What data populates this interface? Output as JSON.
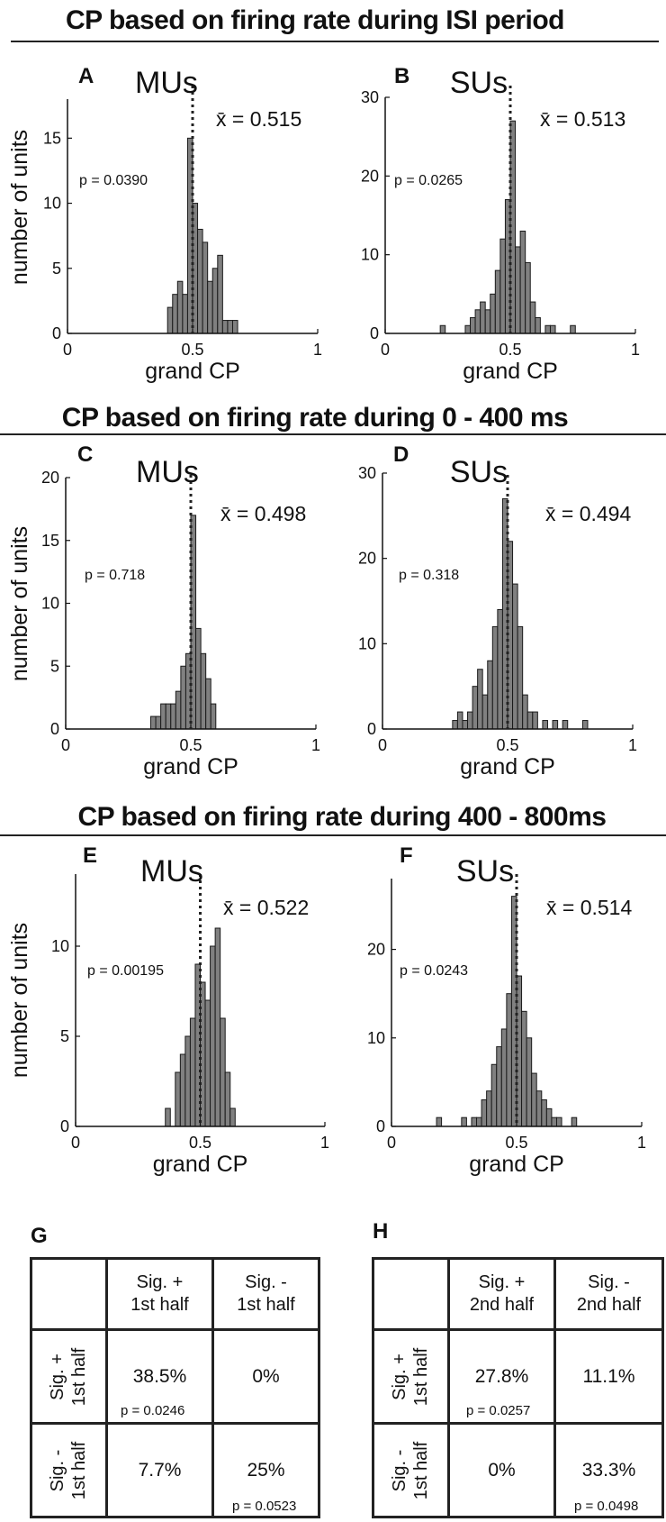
{
  "sections": [
    {
      "title": "CP based on firing rate during ISI period"
    },
    {
      "title": "CP based on firing rate during 0 - 400 ms"
    },
    {
      "title": "CP based on firing rate during 400 - 800ms"
    }
  ],
  "chart_data": [
    {
      "type": "bar",
      "panel": "A",
      "title": "MUs",
      "xlabel": "grand CP",
      "ylabel": "number of units",
      "mean_label": "x̄ = 0.515",
      "p_label": "p = 0.0390",
      "mean": 0.5,
      "xlim": [
        0,
        1
      ],
      "ylim": [
        0,
        18
      ],
      "xticks": [
        0,
        0.5,
        1
      ],
      "xtick_labels": [
        "0",
        "0.5",
        "1"
      ],
      "yticks": [
        0,
        5,
        10,
        15
      ],
      "bin_width": 0.02,
      "bins": [
        {
          "x": 0.4,
          "count": 2
        },
        {
          "x": 0.42,
          "count": 3
        },
        {
          "x": 0.44,
          "count": 4
        },
        {
          "x": 0.46,
          "count": 3
        },
        {
          "x": 0.48,
          "count": 15
        },
        {
          "x": 0.5,
          "count": 10
        },
        {
          "x": 0.52,
          "count": 8
        },
        {
          "x": 0.54,
          "count": 7
        },
        {
          "x": 0.56,
          "count": 4
        },
        {
          "x": 0.58,
          "count": 5
        },
        {
          "x": 0.6,
          "count": 6
        },
        {
          "x": 0.62,
          "count": 1
        },
        {
          "x": 0.64,
          "count": 1
        },
        {
          "x": 0.66,
          "count": 1
        }
      ]
    },
    {
      "type": "bar",
      "panel": "B",
      "title": "SUs",
      "xlabel": "grand CP",
      "ylabel": "",
      "mean_label": "x̄ = 0.513",
      "p_label": "p = 0.0265",
      "mean": 0.5,
      "xlim": [
        0,
        1
      ],
      "ylim": [
        0,
        30
      ],
      "xticks": [
        0,
        0.5,
        1
      ],
      "xtick_labels": [
        "0",
        "0.5",
        "1"
      ],
      "yticks": [
        0,
        10,
        20,
        30
      ],
      "bin_width": 0.02,
      "bins": [
        {
          "x": 0.22,
          "count": 1
        },
        {
          "x": 0.32,
          "count": 1
        },
        {
          "x": 0.34,
          "count": 2
        },
        {
          "x": 0.36,
          "count": 3
        },
        {
          "x": 0.38,
          "count": 4
        },
        {
          "x": 0.4,
          "count": 3
        },
        {
          "x": 0.42,
          "count": 5
        },
        {
          "x": 0.44,
          "count": 8
        },
        {
          "x": 0.46,
          "count": 12
        },
        {
          "x": 0.48,
          "count": 17
        },
        {
          "x": 0.5,
          "count": 27
        },
        {
          "x": 0.52,
          "count": 11
        },
        {
          "x": 0.54,
          "count": 13
        },
        {
          "x": 0.56,
          "count": 9
        },
        {
          "x": 0.58,
          "count": 4
        },
        {
          "x": 0.6,
          "count": 2
        },
        {
          "x": 0.64,
          "count": 1
        },
        {
          "x": 0.66,
          "count": 1
        },
        {
          "x": 0.74,
          "count": 1
        }
      ]
    },
    {
      "type": "bar",
      "panel": "C",
      "title": "MUs",
      "xlabel": "grand CP",
      "ylabel": "number of units",
      "mean_label": "x̄ = 0.498",
      "p_label": "p = 0.718",
      "mean": 0.5,
      "xlim": [
        0,
        1
      ],
      "ylim": [
        0,
        20
      ],
      "xticks": [
        0,
        0.5,
        1
      ],
      "xtick_labels": [
        "0",
        "0.5",
        "1"
      ],
      "yticks": [
        0,
        5,
        10,
        15,
        20
      ],
      "bin_width": 0.02,
      "bins": [
        {
          "x": 0.34,
          "count": 1
        },
        {
          "x": 0.36,
          "count": 1
        },
        {
          "x": 0.38,
          "count": 2
        },
        {
          "x": 0.4,
          "count": 2
        },
        {
          "x": 0.42,
          "count": 2
        },
        {
          "x": 0.44,
          "count": 3
        },
        {
          "x": 0.46,
          "count": 5
        },
        {
          "x": 0.48,
          "count": 6
        },
        {
          "x": 0.5,
          "count": 17
        },
        {
          "x": 0.52,
          "count": 8
        },
        {
          "x": 0.54,
          "count": 6
        },
        {
          "x": 0.56,
          "count": 4
        },
        {
          "x": 0.58,
          "count": 2
        }
      ]
    },
    {
      "type": "bar",
      "panel": "D",
      "title": "SUs",
      "xlabel": "grand CP",
      "ylabel": "",
      "mean_label": "x̄ = 0.494",
      "p_label": "p = 0.318",
      "mean": 0.5,
      "xlim": [
        0,
        1
      ],
      "ylim": [
        0,
        30
      ],
      "xticks": [
        0,
        0.5,
        1
      ],
      "xtick_labels": [
        "0",
        "0.5",
        "1"
      ],
      "yticks": [
        0,
        10,
        20,
        30
      ],
      "bin_width": 0.02,
      "bins": [
        {
          "x": 0.28,
          "count": 1
        },
        {
          "x": 0.3,
          "count": 2
        },
        {
          "x": 0.32,
          "count": 1
        },
        {
          "x": 0.34,
          "count": 2
        },
        {
          "x": 0.36,
          "count": 5
        },
        {
          "x": 0.38,
          "count": 7
        },
        {
          "x": 0.4,
          "count": 4
        },
        {
          "x": 0.42,
          "count": 8
        },
        {
          "x": 0.44,
          "count": 12
        },
        {
          "x": 0.46,
          "count": 14
        },
        {
          "x": 0.48,
          "count": 27
        },
        {
          "x": 0.5,
          "count": 22
        },
        {
          "x": 0.52,
          "count": 17
        },
        {
          "x": 0.54,
          "count": 12
        },
        {
          "x": 0.56,
          "count": 4
        },
        {
          "x": 0.58,
          "count": 2
        },
        {
          "x": 0.6,
          "count": 2
        },
        {
          "x": 0.64,
          "count": 1
        },
        {
          "x": 0.68,
          "count": 1
        },
        {
          "x": 0.72,
          "count": 1
        },
        {
          "x": 0.8,
          "count": 1
        }
      ]
    },
    {
      "type": "bar",
      "panel": "E",
      "title": "MUs",
      "xlabel": "grand CP",
      "ylabel": "number of units",
      "mean_label": "x̄ = 0.522",
      "p_label": "p = 0.00195",
      "mean": 0.5,
      "xlim": [
        0,
        1
      ],
      "ylim": [
        0,
        14
      ],
      "xticks": [
        0,
        0.5,
        1
      ],
      "xtick_labels": [
        "0",
        "0.5",
        "1"
      ],
      "yticks": [
        0,
        5,
        10
      ],
      "bin_width": 0.02,
      "bins": [
        {
          "x": 0.36,
          "count": 1
        },
        {
          "x": 0.4,
          "count": 3
        },
        {
          "x": 0.42,
          "count": 4
        },
        {
          "x": 0.44,
          "count": 5
        },
        {
          "x": 0.46,
          "count": 6
        },
        {
          "x": 0.48,
          "count": 9
        },
        {
          "x": 0.5,
          "count": 8
        },
        {
          "x": 0.52,
          "count": 7
        },
        {
          "x": 0.54,
          "count": 10
        },
        {
          "x": 0.56,
          "count": 11
        },
        {
          "x": 0.58,
          "count": 6
        },
        {
          "x": 0.6,
          "count": 3
        },
        {
          "x": 0.62,
          "count": 1
        }
      ]
    },
    {
      "type": "bar",
      "panel": "F",
      "title": "SUs",
      "xlabel": "grand CP",
      "ylabel": "",
      "mean_label": "x̄ = 0.514",
      "p_label": "p = 0.0243",
      "mean": 0.5,
      "xlim": [
        0,
        1
      ],
      "ylim": [
        0,
        28
      ],
      "xticks": [
        0,
        0.5,
        1
      ],
      "xtick_labels": [
        "0",
        "0.5",
        "1"
      ],
      "yticks": [
        0,
        10,
        20
      ],
      "bin_width": 0.02,
      "bins": [
        {
          "x": 0.18,
          "count": 1
        },
        {
          "x": 0.28,
          "count": 1
        },
        {
          "x": 0.32,
          "count": 1
        },
        {
          "x": 0.34,
          "count": 1
        },
        {
          "x": 0.36,
          "count": 3
        },
        {
          "x": 0.38,
          "count": 4
        },
        {
          "x": 0.4,
          "count": 7
        },
        {
          "x": 0.42,
          "count": 9
        },
        {
          "x": 0.44,
          "count": 11
        },
        {
          "x": 0.46,
          "count": 15
        },
        {
          "x": 0.48,
          "count": 26
        },
        {
          "x": 0.5,
          "count": 17
        },
        {
          "x": 0.52,
          "count": 13
        },
        {
          "x": 0.54,
          "count": 10
        },
        {
          "x": 0.56,
          "count": 6
        },
        {
          "x": 0.58,
          "count": 4
        },
        {
          "x": 0.6,
          "count": 3
        },
        {
          "x": 0.62,
          "count": 2
        },
        {
          "x": 0.64,
          "count": 1
        },
        {
          "x": 0.66,
          "count": 1
        },
        {
          "x": 0.72,
          "count": 1
        }
      ]
    }
  ],
  "tables": [
    {
      "panel": "G",
      "col_headers": [
        "Sig. +\n1st half",
        "Sig. -\n1st half"
      ],
      "row_headers": [
        "Sig. +\n1st half",
        "Sig. -\n1st half"
      ],
      "cells": [
        [
          {
            "value": "38.5%",
            "p": "p = 0.0246"
          },
          {
            "value": "0%",
            "p": ""
          }
        ],
        [
          {
            "value": "7.7%",
            "p": ""
          },
          {
            "value": "25%",
            "p": "p = 0.0523"
          }
        ]
      ]
    },
    {
      "panel": "H",
      "col_headers": [
        "Sig. +\n2nd half",
        "Sig. -\n2nd half"
      ],
      "row_headers": [
        "Sig. +\n1st half",
        "Sig. -\n1st half"
      ],
      "cells": [
        [
          {
            "value": "27.8%",
            "p": "p = 0.0257"
          },
          {
            "value": "11.1%",
            "p": ""
          }
        ],
        [
          {
            "value": "0%",
            "p": ""
          },
          {
            "value": "33.3%",
            "p": "p = 0.0498"
          }
        ]
      ]
    }
  ],
  "colors": {
    "bar_fill": "#808080",
    "bar_stroke": "#1a1a1a",
    "axis": "#111111"
  }
}
